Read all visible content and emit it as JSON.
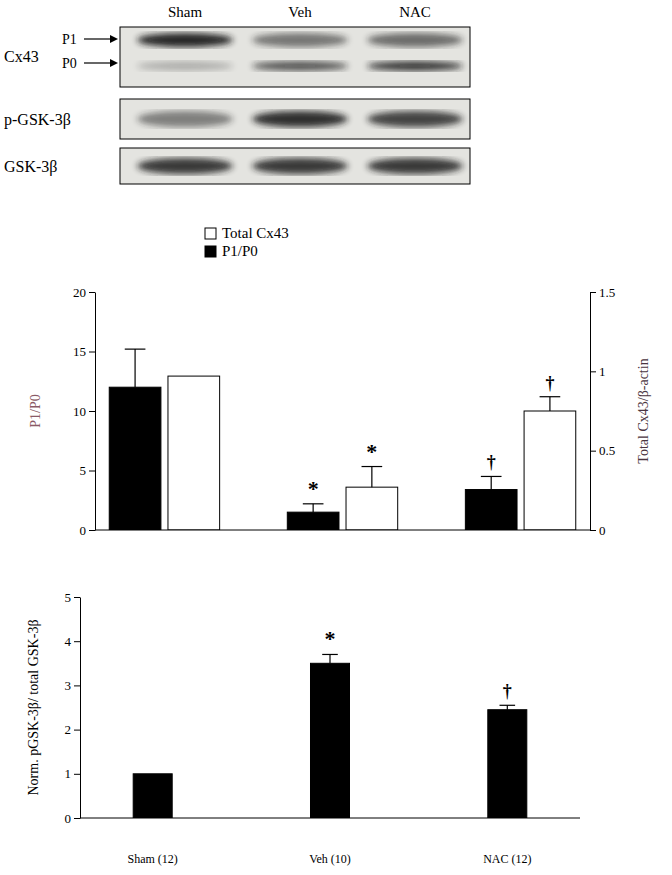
{
  "blot": {
    "lanes": [
      "Sham",
      "Veh",
      "NAC"
    ],
    "rows": [
      {
        "label": "Cx43",
        "bands": [
          "P1",
          "P0"
        ]
      },
      {
        "label": "p-GSK-3β"
      },
      {
        "label": "GSK-3β"
      }
    ]
  },
  "chart_data": [
    {
      "type": "bar",
      "categories": [
        null,
        null,
        null
      ],
      "series": [
        {
          "name": "Total Cx43",
          "color": "#ffffff",
          "axis": "y2",
          "values": [
            0.97,
            0.27,
            0.75
          ],
          "errors": [
            null,
            0.13,
            0.09
          ]
        },
        {
          "name": "P1/P0",
          "color": "#000000",
          "values": [
            12,
            1.5,
            3.4
          ],
          "errors": [
            3.2,
            0.7,
            1.1
          ]
        }
      ],
      "y_label": "P1/P0",
      "y2_label": "Total Cx43/β-actin",
      "ylim": [
        0,
        20
      ],
      "yticks": [
        0,
        5,
        10,
        15,
        20
      ],
      "y2lim": [
        0,
        1.5
      ],
      "y2ticks": [
        0,
        0.5,
        1,
        1.5
      ],
      "legend": "upper left",
      "annotations": [
        {
          "text": "*",
          "category": 1,
          "series": 1
        },
        {
          "text": "*",
          "category": 1,
          "series": 0
        },
        {
          "text": "†",
          "category": 2,
          "series": 1
        },
        {
          "text": "†",
          "category": 2,
          "series": 0
        }
      ]
    },
    {
      "type": "bar",
      "categories": [
        "Sham (12)",
        "Veh (10)",
        "NAC (12)"
      ],
      "values": [
        1,
        3.5,
        2.45
      ],
      "errors": [
        null,
        0.2,
        0.1
      ],
      "color": "#000000",
      "y_label": "Norm. pGSK-3β/ total GSK-3β",
      "ylim": [
        0,
        5
      ],
      "yticks": [
        0,
        1,
        2,
        3,
        4,
        5
      ],
      "annotations": [
        {
          "text": "*",
          "category": 1
        },
        {
          "text": "†",
          "category": 2
        }
      ]
    }
  ]
}
